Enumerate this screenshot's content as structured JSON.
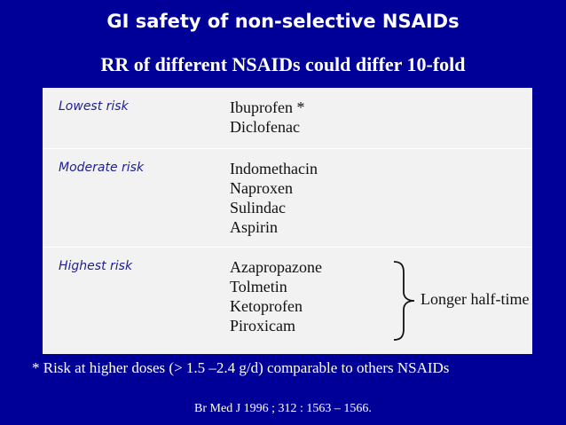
{
  "slide": {
    "title": "GI safety of non-selective NSAIDs",
    "subtitle": "RR of different NSAIDs could differ 10-fold"
  },
  "table": {
    "rows": [
      {
        "label": "Lowest risk",
        "items": [
          "Ibuprofen *",
          "Diclofenac"
        ]
      },
      {
        "label": "Moderate risk",
        "items": [
          "Indomethacin",
          "Naproxen",
          "Sulindac",
          "Aspirin"
        ]
      },
      {
        "label": "Highest risk",
        "items": [
          "Azapropazone",
          "Tolmetin",
          "Ketoprofen",
          "Piroxicam"
        ],
        "bracket_note": "Longer half-time"
      }
    ]
  },
  "footnote": "* Risk at higher doses (> 1.5 –2.4 g/d) comparable to others NSAIDs",
  "reference": "Br Med J 1996 ; 312 : 1563 – 1566."
}
